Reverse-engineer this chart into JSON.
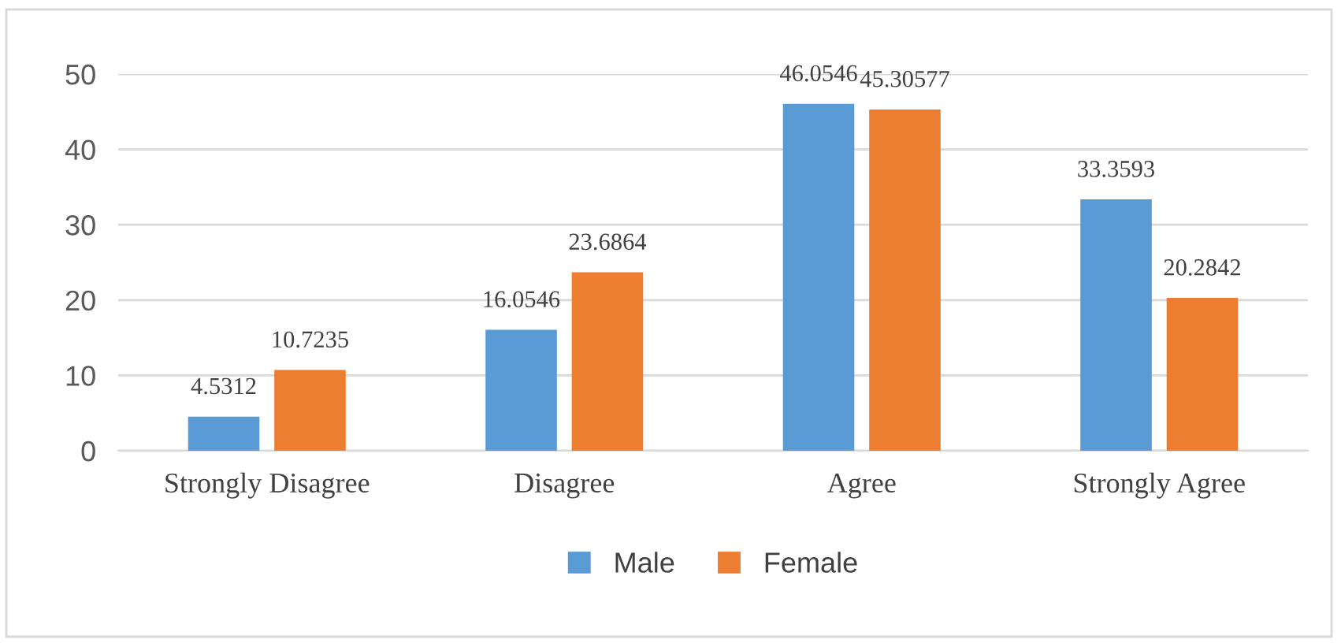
{
  "chart_data": {
    "type": "bar",
    "categories": [
      "Strongly Disagree",
      "Disagree",
      "Agree",
      "Strongly Agree"
    ],
    "series": [
      {
        "name": "Male",
        "color": "#5b9bd5",
        "values": [
          4.5312,
          16.0546,
          46.0546,
          33.3593
        ]
      },
      {
        "name": "Female",
        "color": "#ed7d31",
        "values": [
          10.7235,
          23.6864,
          45.30577,
          20.2842
        ]
      }
    ],
    "ylim": [
      0,
      50
    ],
    "yticks": [
      0,
      10,
      20,
      30,
      40,
      50
    ],
    "grid": "y",
    "legend": "bottom",
    "data_labels": true
  }
}
